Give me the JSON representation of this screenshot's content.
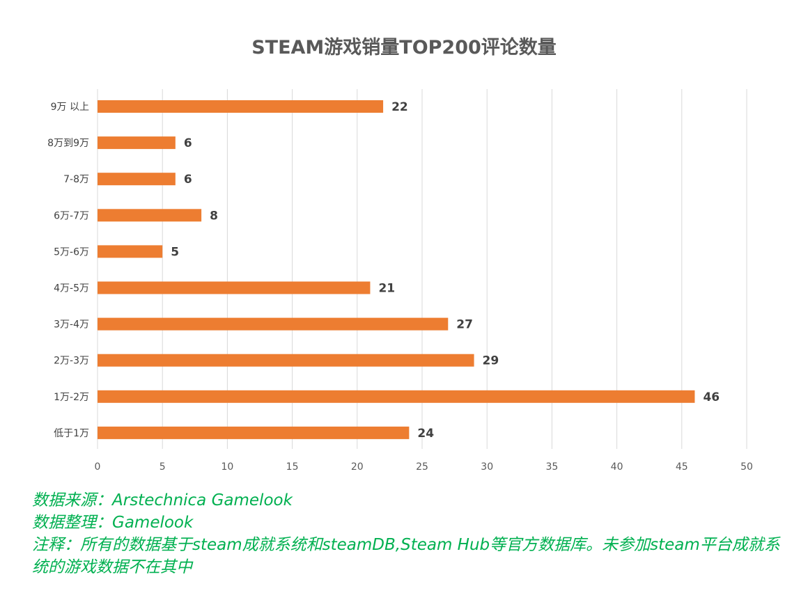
{
  "chart_data": {
    "type": "bar",
    "orientation": "horizontal",
    "title": "STEAM游戏销量TOP200评论数量",
    "categories": [
      "9万 以上",
      "8万到9万",
      "7-8万",
      "6万-7万",
      "5万-6万",
      "4万-5万",
      "3万-4万",
      "2万-3万",
      "1万-2万",
      "低于1万"
    ],
    "values": [
      22,
      6,
      6,
      8,
      5,
      21,
      27,
      29,
      46,
      24
    ],
    "xlim": [
      0,
      50
    ],
    "xticks": [
      0,
      5,
      10,
      15,
      20,
      25,
      30,
      35,
      40,
      45,
      50
    ],
    "xlabel": "",
    "ylabel": "",
    "grid": "vertical",
    "bar_color": "#ed7d31",
    "data_labels": true
  },
  "notes": {
    "source": "数据来源：Arstechnica  Gamelook",
    "organized": "数据整理：Gamelook",
    "remark": "注释：所有的数据基于steam成就系统和steamDB,Steam Hub等官方数据库。未参加steam平台成就系统的游戏数据不在其中",
    "color": "#00b050"
  }
}
